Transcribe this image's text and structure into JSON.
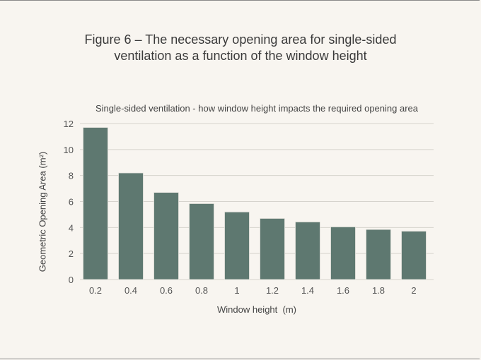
{
  "title_line1": "Figure 6 – The necessary opening area for single-sided",
  "title_line2": "ventilation as a function of the window height",
  "chart_data": {
    "type": "bar",
    "title": "Single-sided ventilation - how window height impacts the required opening area",
    "xlabel": "Window height  (m)",
    "ylabel": "Geometric Opening Area (m²)",
    "categories": [
      "0.2",
      "0.4",
      "0.6",
      "0.8",
      "1",
      "1.2",
      "1.4",
      "1.6",
      "1.8",
      "2"
    ],
    "values": [
      11.7,
      8.2,
      6.7,
      5.84,
      5.2,
      4.7,
      4.43,
      4.05,
      3.85,
      3.72
    ],
    "ylim": [
      0,
      12
    ],
    "yticks": [
      "0",
      "2",
      "4",
      "6",
      "8",
      "10",
      "12"
    ],
    "grid": true,
    "bar_color": "#5e7870",
    "background": "#f8f5f0"
  }
}
